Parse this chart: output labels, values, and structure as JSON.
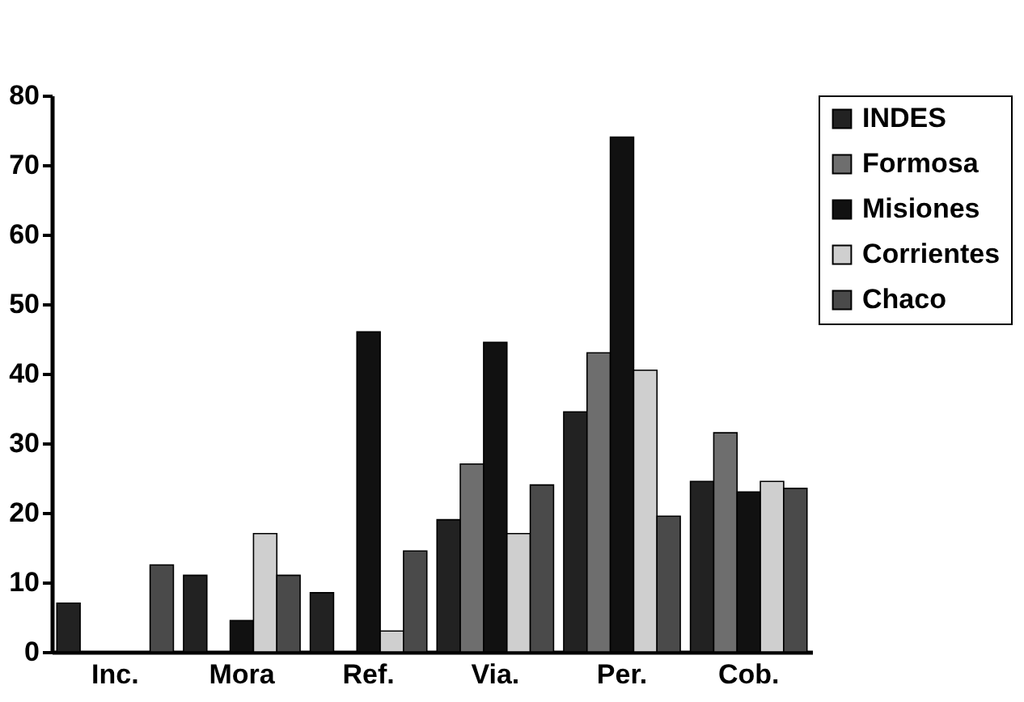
{
  "chart_data": {
    "type": "bar",
    "categories": [
      "Inc.",
      "Mora",
      "Ref.",
      "Via.",
      "Per.",
      "Cob."
    ],
    "series": [
      {
        "name": "INDES",
        "color": "#222222",
        "values": [
          7,
          11,
          8.5,
          19,
          34.5,
          24.5
        ]
      },
      {
        "name": "Formosa",
        "color": "#6e6e6e",
        "values": [
          0,
          0,
          0,
          27,
          43,
          31.5
        ]
      },
      {
        "name": "Misiones",
        "color": "#111111",
        "values": [
          0,
          4.5,
          46,
          44.5,
          74,
          23
        ]
      },
      {
        "name": "Corrientes",
        "color": "#cfcfcf",
        "values": [
          0,
          17,
          3,
          17,
          40.5,
          24.5
        ]
      },
      {
        "name": "Chaco",
        "color": "#4a4a4a",
        "values": [
          12.5,
          11,
          14.5,
          24,
          19.5,
          23.5
        ]
      }
    ],
    "ylim": [
      0,
      80
    ],
    "yticks": [
      0,
      10,
      20,
      30,
      40,
      50,
      60,
      70,
      80
    ],
    "grid": false,
    "legend": "top right"
  }
}
